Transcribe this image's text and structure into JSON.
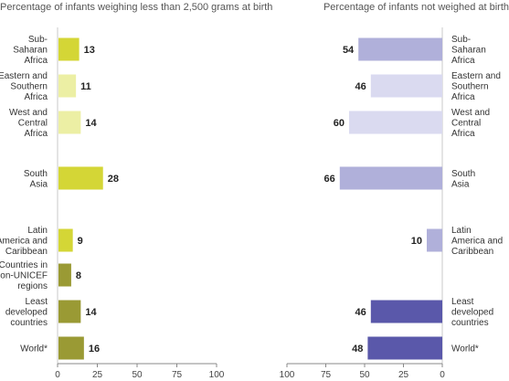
{
  "chart_data": [
    {
      "type": "bar",
      "orientation": "horizontal",
      "title": "Percentage of infants weighing less than 2,500 grams at birth",
      "categories": [
        "Sub-Saharan Africa",
        "Eastern and Southern Africa",
        "West and Central Africa",
        "South Asia",
        "Latin America and Caribbean",
        "Countries in non-UNICEF regions",
        "Least developed countries",
        "World*"
      ],
      "category_lines": [
        [
          "Sub-",
          "Saharan",
          "Africa"
        ],
        [
          "Eastern and",
          "Southern",
          "Africa"
        ],
        [
          "West and",
          "Central",
          "Africa"
        ],
        [
          "South",
          "Asia"
        ],
        [
          "Latin",
          "America and",
          "Caribbean"
        ],
        [
          "Countries in",
          "non-UNICEF",
          "regions"
        ],
        [
          "Least",
          "developed",
          "countries"
        ],
        [
          "World*"
        ]
      ],
      "values": [
        13,
        11,
        14,
        28,
        9,
        8,
        14,
        16
      ],
      "value_labels": [
        "13",
        "11",
        "14",
        "28",
        "9",
        "8",
        "14",
        "16"
      ],
      "colors": [
        "#d4d636",
        "#ecefa4",
        "#ecefa4",
        "#d4d636",
        "#d4d636",
        "#9a9a34",
        "#9a9a34",
        "#9a9a34"
      ],
      "xlim": [
        0,
        100
      ],
      "x_ticks": [
        0,
        25,
        50,
        75,
        100
      ],
      "x_tick_labels": [
        "0",
        "25",
        "50",
        "75",
        "100"
      ],
      "direction": "left-to-right"
    },
    {
      "type": "bar",
      "orientation": "horizontal",
      "title": "Percentage of infants not weighed at birth",
      "categories": [
        "Sub-Saharan Africa",
        "Eastern and Southern Africa",
        "West and Central Africa",
        "South Asia",
        "Latin America and Caribbean",
        "Least developed countries",
        "World*"
      ],
      "category_lines": [
        [
          "Sub-",
          "Saharan",
          "Africa"
        ],
        [
          "Eastern and",
          "Southern",
          "Africa"
        ],
        [
          "West and",
          "Central",
          "Africa"
        ],
        [
          "South",
          "Asia"
        ],
        [
          "Latin",
          "America and",
          "Caribbean"
        ],
        [
          "Least",
          "developed",
          "countries"
        ],
        [
          "World*"
        ]
      ],
      "values": [
        54,
        46,
        60,
        66,
        10,
        46,
        48
      ],
      "value_labels": [
        "54",
        "46",
        "60",
        "66",
        "10",
        "46",
        "48"
      ],
      "colors": [
        "#b0b0da",
        "#dadaf0",
        "#dadaf0",
        "#b0b0da",
        "#b0b0da",
        "#5a58aa",
        "#5a58aa"
      ],
      "xlim": [
        0,
        100
      ],
      "x_ticks": [
        100,
        75,
        50,
        25,
        0
      ],
      "x_tick_labels": [
        "100",
        "75",
        "50",
        "25",
        "0"
      ],
      "direction": "right-to-left"
    }
  ]
}
